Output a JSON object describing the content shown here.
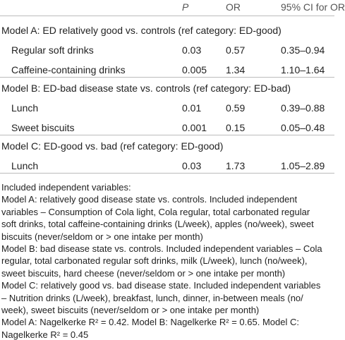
{
  "table": {
    "header": [
      "P",
      "OR",
      "95% CI for OR"
    ],
    "sections": [
      {
        "title": "Model A: ED relatively good vs. controls (ref category: ED-good)",
        "rows": [
          [
            "Regular soft drinks",
            "0.03",
            "0.57",
            "0.35–0.94"
          ],
          [
            "Caffeine-containing drinks",
            "0.005",
            "1.34",
            "1.10–1.64"
          ]
        ]
      },
      {
        "title": "Model B: ED-bad disease state vs. controls (ref category: ED-bad)",
        "rows": [
          [
            "Lunch",
            "0.01",
            "0.59",
            "0.39–0.88"
          ],
          [
            "Sweet biscuits",
            "0.001",
            "0.15",
            "0.05–0.48"
          ]
        ]
      },
      {
        "title": "Model C: ED-good vs. bad (ref category: ED-good)",
        "rows": [
          [
            "Lunch",
            "0.03",
            "1.73",
            "1.05–2.89"
          ]
        ]
      }
    ]
  },
  "notes": [
    "Included independent variables:",
    "Model A: relatively good disease state vs. controls. Included independent",
    "variables – Consumption of Cola light, Cola regular, total carbonated regular",
    "soft drinks, total caffeine-containing drinks (L/week), apples (no/week), sweet",
    "biscuits (never/seldom or > one intake per month)",
    "Model B: bad disease state vs. controls. Included independent variables – Cola",
    "regular, total carbonated regular soft drinks, milk (L/week), lunch (no/week),",
    "sweet biscuits, hard cheese (never/seldom or > one intake per month)",
    "Model C: relatively good vs. bad disease state. Included independent variables",
    "– Nutrition drinks (L/week), breakfast, lunch, dinner, in-between meals (no/",
    "week), sweet biscuits (never/seldom or > one intake per month)",
    "Model A: Nagelkerke R² = 0.42. Model B: Nagelkerke R² = 0.65. Model C:",
    "Nagelkerke R² = 0.45"
  ]
}
